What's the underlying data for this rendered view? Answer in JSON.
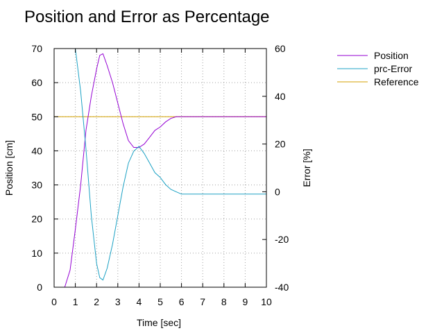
{
  "chart_data": {
    "type": "line",
    "title": "Position and Error as Percentage",
    "xlabel": "Time [sec]",
    "ylabel": "Position [cm]",
    "y2label": "Error [%]",
    "xlim": [
      0,
      10
    ],
    "ylim": [
      0,
      70
    ],
    "y2lim": [
      -40,
      60
    ],
    "xticks": [
      "0",
      "1",
      "2",
      "3",
      "4",
      "5",
      "6",
      "7",
      "8",
      "9",
      "10"
    ],
    "yticks": [
      "0",
      "10",
      "20",
      "30",
      "40",
      "50",
      "60",
      "70"
    ],
    "y2ticks": [
      "-40",
      "-20",
      "0",
      "20",
      "40",
      "60"
    ],
    "grid": true,
    "legend_position": "top-right outside",
    "series": [
      {
        "name": "Position",
        "axis": "left",
        "color": "#9400d3",
        "x": [
          0.5,
          0.75,
          1.0,
          1.25,
          1.5,
          1.75,
          2.0,
          2.15,
          2.3,
          2.5,
          2.75,
          3.0,
          3.25,
          3.5,
          3.75,
          4.0,
          4.25,
          4.5,
          4.75,
          5.0,
          5.25,
          5.5,
          5.75,
          6.0,
          6.5,
          7.0,
          7.5,
          8.0,
          8.5,
          9.0,
          9.5,
          10.0
        ],
        "y": [
          0,
          5,
          17,
          30,
          46,
          56,
          64,
          68,
          68.5,
          65,
          60,
          54,
          48,
          43,
          41,
          41,
          42,
          44,
          46,
          47,
          48.5,
          49.5,
          50,
          50,
          50,
          50,
          50,
          50,
          50,
          50,
          50,
          50
        ]
      },
      {
        "name": "prc-Error",
        "axis": "right",
        "color": "#1ba1c4",
        "x": [
          1.0,
          1.25,
          1.5,
          1.75,
          2.0,
          2.15,
          2.3,
          2.5,
          2.75,
          3.0,
          3.25,
          3.5,
          3.75,
          4.0,
          4.25,
          4.5,
          4.75,
          5.0,
          5.25,
          5.5,
          5.75,
          6.0,
          6.5,
          7.0,
          7.5,
          8.0,
          8.5,
          9.0,
          9.5,
          10.0
        ],
        "y": [
          60,
          42,
          18,
          -10,
          -30,
          -36,
          -37,
          -32,
          -22,
          -10,
          2,
          12,
          17,
          19,
          16,
          12,
          8,
          6,
          3,
          1,
          0,
          -1,
          -1,
          -1,
          -1,
          -1,
          -1,
          -1,
          -1,
          -1
        ]
      },
      {
        "name": "Reference",
        "axis": "left",
        "color": "#d4a000",
        "x": [
          0,
          10
        ],
        "y": [
          50,
          50
        ]
      }
    ]
  }
}
